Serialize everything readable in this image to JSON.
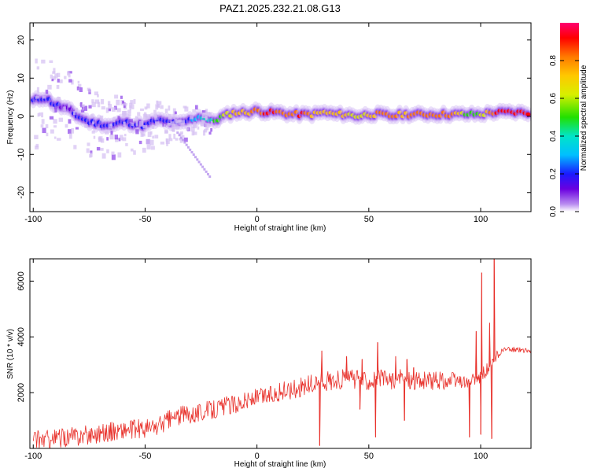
{
  "title": "PAZ1.2025.232.21.08.G13",
  "colors": {
    "snr_line": "#e8302a",
    "colorbar": [
      "#ffffff",
      "#b98cf0",
      "#6a00e0",
      "#1a1aff",
      "#00bfff",
      "#00e5c8",
      "#22e000",
      "#d8ef00",
      "#ffc800",
      "#ff7a00",
      "#ff0000",
      "#ff0070"
    ]
  },
  "chart_data": [
    {
      "type": "heatmap",
      "xlabel": "Height of straight line (km)",
      "ylabel": "Frequency (Hz)",
      "xlim": [
        -101.5,
        122.5
      ],
      "ylim": [
        -25,
        24.5
      ],
      "xticks": [
        -100,
        -50,
        0,
        50,
        100
      ],
      "yticks": [
        -20,
        -10,
        0,
        10,
        20
      ],
      "colorbar": {
        "label": "Normalized spectral amplitude",
        "range": [
          0,
          1
        ],
        "ticks": [
          "0.0",
          "0.2",
          "0.4",
          "0.6",
          "0.8"
        ]
      },
      "ridge": {
        "x": [
          -100,
          -95,
          -90,
          -85,
          -80,
          -75,
          -70,
          -65,
          -60,
          -55,
          -50,
          -45,
          -40,
          -35,
          -30,
          -25,
          -20,
          -15,
          -10,
          -5,
          0,
          5,
          10,
          15,
          20,
          25,
          30,
          35,
          40,
          45,
          50,
          55,
          60,
          65,
          70,
          75,
          80,
          85,
          90,
          95,
          100,
          105,
          110,
          115,
          120
        ],
        "freq": [
          4,
          5,
          3,
          2,
          0,
          -1.5,
          -2,
          -2.5,
          -1.5,
          -2,
          -2.5,
          -1,
          -1.5,
          -2,
          -1,
          0,
          -1.5,
          0,
          1,
          1,
          1.5,
          1,
          1,
          0.5,
          0.5,
          0.5,
          1,
          0.5,
          0.5,
          0,
          0.5,
          0.5,
          0,
          0.5,
          0.5,
          0.5,
          0.5,
          0.5,
          0.5,
          0.5,
          0.5,
          1,
          1,
          1,
          1
        ],
        "amplitude": [
          0.25,
          0.3,
          0.25,
          0.2,
          0.25,
          0.3,
          0.3,
          0.25,
          0.3,
          0.3,
          0.25,
          0.3,
          0.3,
          0.3,
          0.3,
          0.4,
          0.5,
          0.6,
          0.7,
          0.75,
          0.8,
          0.9,
          0.85,
          0.8,
          0.9,
          0.75,
          0.7,
          0.75,
          0.7,
          0.6,
          0.7,
          0.8,
          0.8,
          0.75,
          0.8,
          0.8,
          0.8,
          0.85,
          0.75,
          0.5,
          0.6,
          0.8,
          0.95,
          0.95,
          0.95
        ]
      }
    },
    {
      "type": "line",
      "xlabel": "Height of straight line (km)",
      "ylabel": "SNR (10 * v/v)",
      "xlim": [
        -101.5,
        122.5
      ],
      "ylim": [
        0,
        6800
      ],
      "xticks": [
        -100,
        -50,
        0,
        50,
        100
      ],
      "yticks": [
        2000,
        4000,
        6000
      ],
      "series": [
        {
          "x": [
            -100,
            -90,
            -80,
            -70,
            -60,
            -50,
            -45,
            -40,
            -35,
            -30,
            -25,
            -20,
            -15,
            -10,
            -5,
            0,
            5,
            10,
            15,
            20,
            25,
            30,
            35,
            40,
            45,
            50,
            55,
            60,
            65,
            70,
            75,
            80,
            85,
            90,
            95,
            100,
            105,
            110,
            115,
            122
          ],
          "values": [
            300,
            350,
            450,
            550,
            650,
            700,
            750,
            1000,
            1150,
            1250,
            1300,
            1400,
            1500,
            1600,
            1700,
            1800,
            1900,
            2000,
            2100,
            2200,
            2300,
            2400,
            2450,
            2500,
            2450,
            2450,
            2500,
            2450,
            2500,
            2450,
            2400,
            2450,
            2400,
            2400,
            2350,
            2600,
            3000,
            3550,
            3550,
            3500
          ],
          "spikes": [
            {
              "x": 28,
              "value": 100
            },
            {
              "x": 29,
              "value": 3500
            },
            {
              "x": 40,
              "value": 3300
            },
            {
              "x": 46,
              "value": 1400
            },
            {
              "x": 47,
              "value": 3200
            },
            {
              "x": 53,
              "value": 400
            },
            {
              "x": 54,
              "value": 3800
            },
            {
              "x": 62,
              "value": 3300
            },
            {
              "x": 66,
              "value": 1000
            },
            {
              "x": 67,
              "value": 3200
            },
            {
              "x": 70,
              "value": 2900
            },
            {
              "x": 95,
              "value": 400
            },
            {
              "x": 98,
              "value": 4200
            },
            {
              "x": 100,
              "value": 500
            },
            {
              "x": 100.5,
              "value": 6300
            },
            {
              "x": 104,
              "value": 4500
            },
            {
              "x": 105,
              "value": 350
            },
            {
              "x": 106,
              "value": 6800
            }
          ]
        }
      ]
    }
  ]
}
